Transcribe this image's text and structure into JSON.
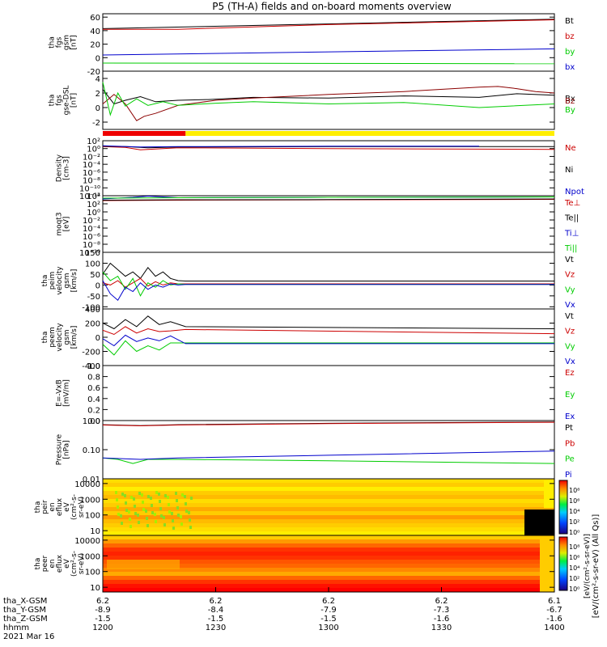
{
  "title": "P5 (TH-A) fields and on-board moments overview",
  "chart_data": [
    {
      "type": "line",
      "panel_id": "fgs-gsm",
      "ylabel_lines": [
        "tha",
        "fgs",
        "gsm",
        "[nT]"
      ],
      "yticks": [
        "60",
        "40",
        "20",
        "0",
        "-20"
      ],
      "ylim": [
        -20,
        65
      ],
      "x_range": [
        0,
        120
      ],
      "series": [
        {
          "name": "Bt",
          "color": "#000000",
          "x": [
            0,
            120
          ],
          "y": [
            43,
            57
          ]
        },
        {
          "name": "bz",
          "color": "#cc0000",
          "x": [
            0,
            20,
            60,
            120
          ],
          "y": [
            42,
            42,
            49,
            56
          ]
        },
        {
          "name": "by",
          "color": "#00cc00",
          "x": [
            0,
            120
          ],
          "y": [
            -8,
            -9
          ]
        },
        {
          "name": "bx",
          "color": "#0000cc",
          "x": [
            0,
            120
          ],
          "y": [
            4,
            13
          ]
        }
      ]
    },
    {
      "type": "line",
      "panel_id": "fgs-dsl",
      "ylabel_lines": [
        "tha",
        "fgs",
        "gse-DSL",
        "[nT]"
      ],
      "yticks": [
        "4",
        "2",
        "0",
        "-2"
      ],
      "ylim": [
        -3,
        5
      ],
      "x_range": [
        0,
        120
      ],
      "series": [
        {
          "name": "Bx",
          "color": "#000000",
          "x": [
            0,
            3,
            6,
            10,
            14,
            20,
            28,
            40,
            60,
            80,
            100,
            110,
            120
          ],
          "y": [
            2.5,
            0.5,
            1.0,
            1.5,
            0.8,
            1.0,
            1.1,
            1.4,
            1.3,
            1.6,
            1.4,
            1.9,
            1.7
          ]
        },
        {
          "name": "Bz",
          "color": "#8b0000",
          "x": [
            0,
            3,
            6,
            9,
            11,
            14,
            20,
            30,
            40,
            60,
            80,
            100,
            105,
            110,
            115,
            120
          ],
          "y": [
            0.5,
            1.8,
            0.5,
            -1.8,
            -1.2,
            -0.8,
            0.3,
            1.0,
            1.3,
            1.8,
            2.2,
            2.8,
            2.9,
            2.6,
            2.2,
            2.0
          ]
        },
        {
          "name": "By",
          "color": "#00cc00",
          "x": [
            0,
            2,
            4,
            6,
            9,
            12,
            16,
            20,
            30,
            40,
            60,
            80,
            100,
            120
          ],
          "y": [
            3.5,
            -1.0,
            2.0,
            0.2,
            1.2,
            0.3,
            0.8,
            0.3,
            0.6,
            0.8,
            0.5,
            0.7,
            0.0,
            0.5
          ]
        }
      ],
      "legend": [
        "Bx",
        "Bz",
        "By"
      ]
    },
    {
      "type": "bar",
      "panel_id": "mode-bar",
      "segments": [
        {
          "from": 0,
          "to": 22,
          "color": "#ee0000"
        },
        {
          "from": 22,
          "to": 120,
          "color": "#ffee00"
        }
      ]
    },
    {
      "type": "line",
      "panel_id": "density",
      "ylabel_lines": [
        "Density",
        "[cm-3]"
      ],
      "log": true,
      "yticks": [
        "10²",
        "10⁰",
        "10⁻²",
        "10⁻⁴",
        "10⁻⁶",
        "10⁻⁸",
        "10⁻¹⁰",
        "10⁻¹²"
      ],
      "ylim_exp": [
        -12,
        2
      ],
      "x_range": [
        0,
        120
      ],
      "series": [
        {
          "name": "Ne",
          "color": "#cc0000",
          "x": [
            0,
            6,
            10,
            20,
            60,
            120
          ],
          "y_exp": [
            0.5,
            0.3,
            -0.3,
            0.2,
            0.0,
            -0.2
          ]
        },
        {
          "name": "Ni",
          "color": "#000000",
          "x": [
            0,
            6,
            12,
            20,
            60,
            120
          ],
          "y_exp": [
            0.6,
            0.5,
            0.2,
            0.4,
            0.5,
            0.5
          ]
        },
        {
          "name": "Npot",
          "color": "#0000cc",
          "x": [
            0,
            10,
            20,
            60,
            100
          ],
          "y_exp": [
            0.7,
            0.4,
            0.5,
            0.6,
            0.6
          ]
        }
      ]
    },
    {
      "type": "line",
      "panel_id": "temperature",
      "ylabel_lines": [
        "moqt3",
        "[eV]"
      ],
      "log": true,
      "yticks": [
        "10⁴",
        "10²",
        "10⁰",
        "10⁻²",
        "10⁻⁴",
        "10⁻⁶",
        "10⁻⁸",
        "10⁻¹⁰"
      ],
      "ylim_exp": [
        -10,
        4
      ],
      "x_range": [
        0,
        120
      ],
      "series": [
        {
          "name": "Te⊥",
          "color": "#cc0000",
          "x": [
            0,
            20,
            60,
            120
          ],
          "y_exp": [
            2.8,
            2.9,
            3.0,
            3.1
          ]
        },
        {
          "name": "Te||",
          "color": "#000000",
          "x": [
            0,
            20,
            60,
            120
          ],
          "y_exp": [
            2.9,
            3.0,
            3.05,
            3.2
          ]
        },
        {
          "name": "Ti⊥",
          "color": "#0000cc",
          "x": [
            0,
            8,
            12,
            20,
            60,
            120
          ],
          "y_exp": [
            3.2,
            3.6,
            3.9,
            3.5,
            3.6,
            3.7
          ]
        },
        {
          "name": "Ti||",
          "color": "#00cc00",
          "x": [
            0,
            20,
            60,
            120
          ],
          "y_exp": [
            3.4,
            3.5,
            3.6,
            3.7
          ]
        }
      ]
    },
    {
      "type": "line",
      "panel_id": "peim-velocity",
      "ylabel_lines": [
        "tha",
        "peim",
        "velocity",
        "gsm",
        "[km/s]"
      ],
      "yticks": [
        "150",
        "100",
        "50",
        "0",
        "-50",
        "-100"
      ],
      "ylim": [
        -110,
        150
      ],
      "x_range": [
        0,
        120
      ],
      "series": [
        {
          "name": "Vt",
          "color": "#000000",
          "x": [
            0,
            2,
            4,
            6,
            8,
            10,
            12,
            14,
            16,
            18,
            20,
            22,
            120
          ],
          "y": [
            50,
            100,
            70,
            40,
            60,
            30,
            80,
            40,
            60,
            30,
            20,
            18,
            18
          ]
        },
        {
          "name": "Vz",
          "color": "#cc0000",
          "x": [
            0,
            2,
            4,
            6,
            8,
            10,
            12,
            14,
            16,
            18,
            20,
            22,
            120
          ],
          "y": [
            10,
            0,
            20,
            -10,
            10,
            30,
            -5,
            15,
            0,
            10,
            5,
            5,
            5
          ]
        },
        {
          "name": "Vy",
          "color": "#00cc00",
          "x": [
            0,
            2,
            4,
            6,
            8,
            10,
            12,
            14,
            16,
            18,
            20,
            22,
            120
          ],
          "y": [
            60,
            20,
            40,
            -20,
            30,
            -50,
            10,
            -10,
            20,
            0,
            5,
            3,
            3
          ]
        },
        {
          "name": "Vx",
          "color": "#0000cc",
          "x": [
            0,
            2,
            4,
            6,
            8,
            10,
            12,
            14,
            16,
            18,
            20,
            22,
            120
          ],
          "y": [
            20,
            -40,
            -70,
            -10,
            -30,
            10,
            -20,
            0,
            -10,
            5,
            0,
            2,
            2
          ]
        }
      ]
    },
    {
      "type": "line",
      "panel_id": "peem-velocity",
      "ylabel_lines": [
        "tha",
        "peem",
        "velocity",
        "gsm",
        "[km/s]"
      ],
      "yticks": [
        "400",
        "200",
        "0",
        "-200",
        "-400"
      ],
      "ylim": [
        -400,
        400
      ],
      "x_range": [
        0,
        120
      ],
      "series": [
        {
          "name": "Vt",
          "color": "#000000",
          "x": [
            0,
            3,
            6,
            9,
            12,
            15,
            18,
            22,
            120
          ],
          "y": [
            200,
            120,
            250,
            150,
            300,
            180,
            220,
            150,
            120
          ]
        },
        {
          "name": "Vz",
          "color": "#cc0000",
          "x": [
            0,
            3,
            6,
            9,
            12,
            15,
            18,
            22,
            120
          ],
          "y": [
            100,
            40,
            150,
            60,
            120,
            80,
            90,
            110,
            50
          ]
        },
        {
          "name": "Vy",
          "color": "#00cc00",
          "x": [
            0,
            3,
            6,
            9,
            12,
            15,
            18,
            22,
            120
          ],
          "y": [
            -100,
            -250,
            -50,
            -200,
            -120,
            -180,
            -80,
            -80,
            -80
          ]
        },
        {
          "name": "Vx",
          "color": "#0000cc",
          "x": [
            0,
            3,
            6,
            9,
            12,
            15,
            18,
            22,
            120
          ],
          "y": [
            -20,
            -120,
            30,
            -60,
            -10,
            -50,
            20,
            -90,
            -90
          ]
        }
      ]
    },
    {
      "type": "line",
      "panel_id": "efield",
      "ylabel_lines": [
        "E=-VxB",
        "[mV/m]"
      ],
      "yticks": [
        "1.0",
        "0.8",
        "0.6",
        "0.4",
        "0.2",
        "0.0"
      ],
      "ylim": [
        0,
        1
      ],
      "x_range": [
        0,
        120
      ],
      "series": [
        {
          "name": "Ez",
          "color": "#cc0000",
          "x": [],
          "y": []
        },
        {
          "name": "Ey",
          "color": "#00cc00",
          "x": [],
          "y": []
        },
        {
          "name": "Ex",
          "color": "#0000cc",
          "x": [],
          "y": []
        }
      ]
    },
    {
      "type": "line",
      "panel_id": "pressure",
      "ylabel_lines": [
        "Pressure",
        "[nPa]"
      ],
      "log": true,
      "yticks": [
        "1.00",
        "0.10",
        "0.01"
      ],
      "ylim_exp": [
        -2,
        0.1
      ],
      "x_range": [
        0,
        120
      ],
      "series": [
        {
          "name": "Pt",
          "color": "#000000",
          "x": [
            0,
            10,
            20,
            60,
            120
          ],
          "y_exp": [
            -0.05,
            -0.08,
            -0.05,
            0.0,
            0.05
          ]
        },
        {
          "name": "Pb",
          "color": "#cc0000",
          "x": [
            0,
            10,
            20,
            60,
            120
          ],
          "y_exp": [
            -0.06,
            -0.09,
            -0.06,
            -0.01,
            0.04
          ]
        },
        {
          "name": "Pe",
          "color": "#00cc00",
          "x": [
            0,
            4,
            8,
            12,
            20,
            60,
            120
          ],
          "y_exp": [
            -1.25,
            -1.3,
            -1.45,
            -1.3,
            -1.3,
            -1.35,
            -1.45
          ]
        },
        {
          "name": "Pi",
          "color": "#0000cc",
          "x": [
            0,
            10,
            20,
            60,
            120
          ],
          "y_exp": [
            -1.25,
            -1.3,
            -1.25,
            -1.15,
            -1.0
          ]
        }
      ]
    },
    {
      "type": "heatmap",
      "panel_id": "peir-spectrogram",
      "ylabel_lines": [
        "tha",
        "peir",
        "en",
        "eflux",
        "eV",
        "(cm²-s-",
        "sr-eV)"
      ],
      "yticks": [
        "10000",
        "1000",
        "100",
        "10"
      ],
      "ylim": [
        5,
        20000
      ],
      "colorbar_ticks": [
        "10⁸",
        "10⁶",
        "10⁴",
        "10²",
        "10⁰"
      ],
      "colorbar_label": "[eV/(cm²-s-sr-eV) (All Qs)]"
    },
    {
      "type": "heatmap",
      "panel_id": "peer-spectrogram",
      "ylabel_lines": [
        "tha",
        "peer",
        "en",
        "eflux",
        "eV",
        "(cm²-s-",
        "sr-eV)"
      ],
      "yticks": [
        "10000",
        "1000",
        "100",
        "10"
      ],
      "ylim": [
        5,
        20000
      ],
      "colorbar_ticks": [
        "10⁸",
        "10⁶",
        "10⁴",
        "10²",
        "10⁰"
      ],
      "colorbar_label": "[eV/(cm²-s-sr-eV)]"
    }
  ],
  "footer": {
    "row_labels": [
      "tha_X-GSM",
      "tha_Y-GSM",
      "tha_Z-GSM",
      "hhmm",
      "2021 Mar 16"
    ],
    "columns": [
      {
        "x": "6.2",
        "y": "-8.9",
        "z": "-1.5",
        "time": "1200"
      },
      {
        "x": "6.2",
        "y": "-8.4",
        "z": "-1.5",
        "time": "1230"
      },
      {
        "x": "6.2",
        "y": "-7.9",
        "z": "-1.5",
        "time": "1300"
      },
      {
        "x": "6.2",
        "y": "-7.3",
        "z": "-1.6",
        "time": "1330"
      },
      {
        "x": "6.1",
        "y": "-6.7",
        "z": "-1.6",
        "time": "1400"
      }
    ]
  }
}
